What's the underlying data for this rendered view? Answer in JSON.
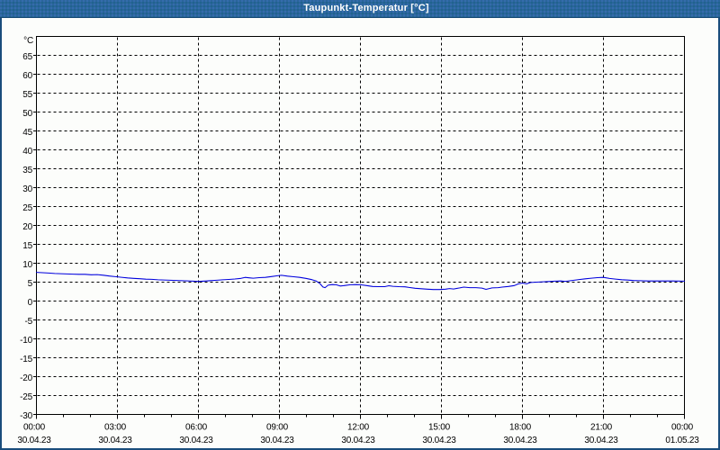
{
  "window": {
    "title": "Taupunkt-Temperatur [°C]"
  },
  "colors": {
    "titlebar_base": "#2a649c",
    "titlebar_dot_light": "#3a6cb8",
    "titlebar_dot_dark": "#156a8c",
    "frame_border": "#1a4d7c",
    "plot_border": "#000000",
    "grid": "#000000",
    "line": "#0000dd",
    "background": "#fcfdfb",
    "text": "#000000"
  },
  "chart_data": {
    "type": "line",
    "title": "Taupunkt-Temperatur [°C]",
    "ylabel": "°C",
    "xlabel": "",
    "ylim": [
      -30,
      70
    ],
    "ytick_step": 5,
    "ytick_labels": [
      "65",
      "60",
      "55",
      "50",
      "45",
      "40",
      "35",
      "30",
      "25",
      "20",
      "15",
      "10",
      "5",
      "0",
      "-5",
      "-10",
      "-15",
      "-20",
      "-25",
      "-30"
    ],
    "xlim_hours": [
      0,
      24
    ],
    "x_major_step_hours": 3,
    "x_minor_step_hours": 1,
    "x_tick_labels": [
      "00:00",
      "03:00",
      "06:00",
      "09:00",
      "12:00",
      "15:00",
      "18:00",
      "21:00",
      "00:00"
    ],
    "x_date_labels": [
      "30.04.23",
      "30.04.23",
      "30.04.23",
      "30.04.23",
      "30.04.23",
      "30.04.23",
      "30.04.23",
      "30.04.23",
      "01.05.23"
    ],
    "grid": "dashed",
    "legend": "none",
    "series": [
      {
        "name": "Taupunkt-Temperatur",
        "color": "#0000dd",
        "points": [
          [
            0,
            7.6
          ],
          [
            0.225,
            7.5
          ],
          [
            0.45,
            7.4
          ],
          [
            0.675,
            7.28
          ],
          [
            0.9,
            7.23
          ],
          [
            1.125,
            7.17
          ],
          [
            1.35,
            7.12
          ],
          [
            1.575,
            7.06
          ],
          [
            1.8,
            7.06
          ],
          [
            2.025,
            6.95
          ],
          [
            2.25,
            7.0
          ],
          [
            2.475,
            6.84
          ],
          [
            2.7,
            6.62
          ],
          [
            2.925,
            6.45
          ],
          [
            3.15,
            6.28
          ],
          [
            3.375,
            6.12
          ],
          [
            3.6,
            6.0
          ],
          [
            3.825,
            5.9
          ],
          [
            4.05,
            5.78
          ],
          [
            4.275,
            5.73
          ],
          [
            4.5,
            5.62
          ],
          [
            4.725,
            5.56
          ],
          [
            4.95,
            5.5
          ],
          [
            5.175,
            5.45
          ],
          [
            5.4,
            5.39
          ],
          [
            5.625,
            5.34
          ],
          [
            6.0,
            5.2
          ],
          [
            6.225,
            5.29
          ],
          [
            6.45,
            5.4
          ],
          [
            6.675,
            5.5
          ],
          [
            6.9,
            5.62
          ],
          [
            7.125,
            5.72
          ],
          [
            7.35,
            5.83
          ],
          [
            7.575,
            5.99
          ],
          [
            7.725,
            6.26
          ],
          [
            7.875,
            6.15
          ],
          [
            8.025,
            6.04
          ],
          [
            8.25,
            6.2
          ],
          [
            8.475,
            6.26
          ],
          [
            8.7,
            6.48
          ],
          [
            8.925,
            6.7
          ],
          [
            9.075,
            6.81
          ],
          [
            9.3,
            6.59
          ],
          [
            9.525,
            6.43
          ],
          [
            9.75,
            6.26
          ],
          [
            9.975,
            5.99
          ],
          [
            10.2,
            5.66
          ],
          [
            10.35,
            5.33
          ],
          [
            10.5,
            4.63
          ],
          [
            10.61,
            3.72
          ],
          [
            10.69,
            3.55
          ],
          [
            10.8,
            4.2
          ],
          [
            10.95,
            4.35
          ],
          [
            11.1,
            4.3
          ],
          [
            11.25,
            3.98
          ],
          [
            11.4,
            4.1
          ],
          [
            11.625,
            4.3
          ],
          [
            11.85,
            4.35
          ],
          [
            12.0,
            4.3
          ],
          [
            12.225,
            4.1
          ],
          [
            12.45,
            3.85
          ],
          [
            12.675,
            3.8
          ],
          [
            12.9,
            3.8
          ],
          [
            13.05,
            4.05
          ],
          [
            13.2,
            3.9
          ],
          [
            13.425,
            3.8
          ],
          [
            13.65,
            3.76
          ],
          [
            13.8,
            3.6
          ],
          [
            14.025,
            3.38
          ],
          [
            14.25,
            3.26
          ],
          [
            14.475,
            3.15
          ],
          [
            14.7,
            3.04
          ],
          [
            14.925,
            3.04
          ],
          [
            15.15,
            3.15
          ],
          [
            15.3,
            3.31
          ],
          [
            15.45,
            3.2
          ],
          [
            15.675,
            3.48
          ],
          [
            15.825,
            3.7
          ],
          [
            16.05,
            3.55
          ],
          [
            16.275,
            3.55
          ],
          [
            16.5,
            3.44
          ],
          [
            16.65,
            3.1
          ],
          [
            16.875,
            3.48
          ],
          [
            17.1,
            3.55
          ],
          [
            17.25,
            3.7
          ],
          [
            17.475,
            3.85
          ],
          [
            17.7,
            4.1
          ],
          [
            17.85,
            4.54
          ],
          [
            18.0,
            4.76
          ],
          [
            18.15,
            4.55
          ],
          [
            18.3,
            4.9
          ],
          [
            18.525,
            5.0
          ],
          [
            18.75,
            5.1
          ],
          [
            18.975,
            5.16
          ],
          [
            19.2,
            5.27
          ],
          [
            19.425,
            5.32
          ],
          [
            19.58,
            5.21
          ],
          [
            19.875,
            5.48
          ],
          [
            20.1,
            5.7
          ],
          [
            20.325,
            5.87
          ],
          [
            20.55,
            6.04
          ],
          [
            20.775,
            6.2
          ],
          [
            21.0,
            6.26
          ],
          [
            21.225,
            5.98
          ],
          [
            21.45,
            5.82
          ],
          [
            21.675,
            5.65
          ],
          [
            21.9,
            5.54
          ],
          [
            22.125,
            5.43
          ],
          [
            22.35,
            5.37
          ],
          [
            22.65,
            5.32
          ],
          [
            23.1,
            5.32
          ],
          [
            23.55,
            5.32
          ],
          [
            24.0,
            5.27
          ]
        ]
      }
    ]
  }
}
